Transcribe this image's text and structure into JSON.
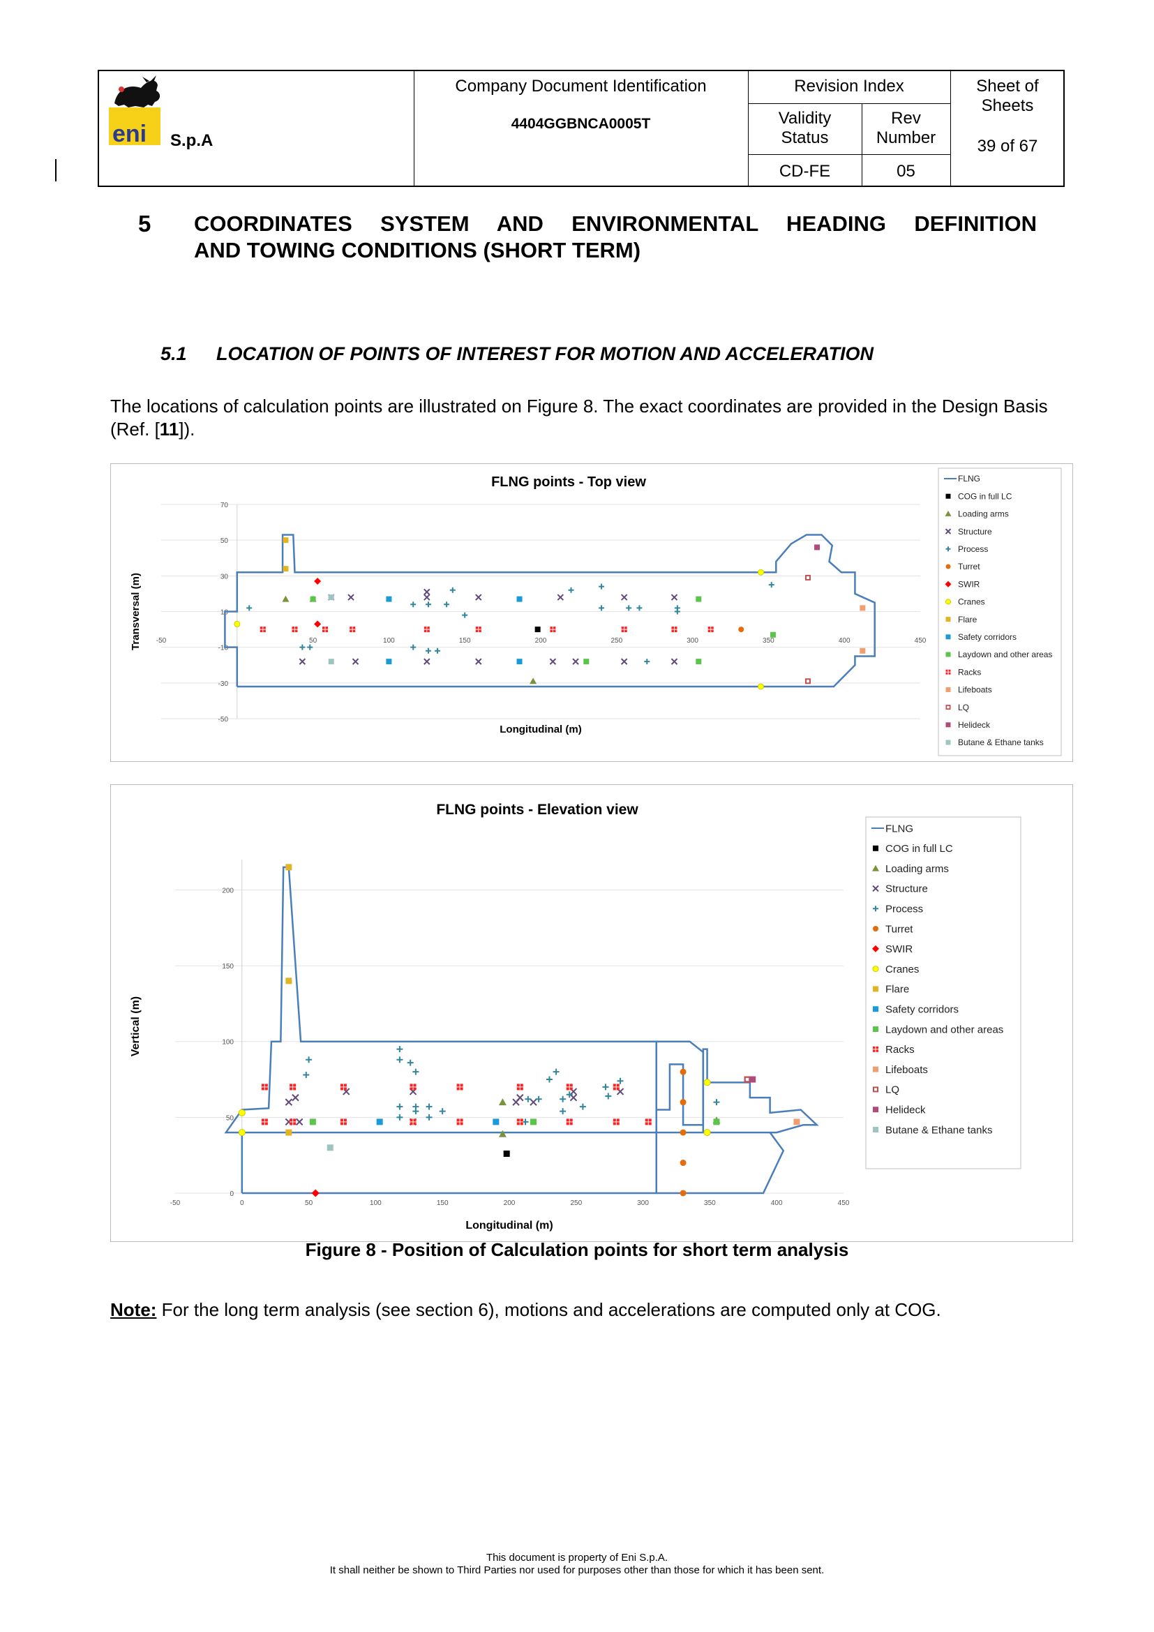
{
  "header": {
    "company": "S.p.A",
    "logo_text": "eni",
    "doc_id_label": "Company Document Identification",
    "doc_id": "4404GGBNCA0005T",
    "revision_index_label": "Revision Index",
    "validity_label_1": "Validity",
    "validity_label_2": "Status",
    "rev_label_1": "Rev",
    "rev_label_2": "Number",
    "validity_value": "CD-FE",
    "rev_value": "05",
    "sheet_label_1": "Sheet  of",
    "sheet_label_2": "Sheets",
    "sheet_value": "39 of 67"
  },
  "section": {
    "number": "5",
    "title_line1": "COORDINATES SYSTEM AND ENVIRONMENTAL HEADING DEFINITION",
    "title_line2": "AND TOWING CONDITIONS (SHORT TERM)"
  },
  "subsection": {
    "number": "5.1",
    "title": "LOCATION OF POINTS OF INTEREST FOR MOTION AND ACCELERATION"
  },
  "paragraph": {
    "part1": "The locations of calculation points are illustrated on Figure 8. The exact coordinates are provided in the Design Basis (Ref. [",
    "ref": "11",
    "part2": "])."
  },
  "legend_colors": {
    "FLNG": "#4a7ebb",
    "COG in full LC": "#000000",
    "Loading arms": "#77933c",
    "Structure": "#604a7b",
    "Process": "#31859c",
    "Turret": "#e46c0a",
    "SWIR": "#ff0000",
    "Cranes": "#ffff00",
    "Flare": "#e2b424",
    "Safety corridors": "#1a9ad6",
    "Laydown and other areas": "#5bc44a",
    "Racks": "#ff2020",
    "Lifeboats": "#f0a070",
    "LQ": "#c0504d",
    "Helideck": "#b04a7b",
    "Butane & Ethane tanks": "#9ec4c0"
  },
  "chart_data": [
    {
      "type": "scatter",
      "title": "FLNG points - Top view",
      "xlabel": "Longitudinal (m)",
      "ylabel": "Transversal (m)",
      "xlim": [
        -50,
        450
      ],
      "ylim": [
        -50,
        70
      ],
      "xticks": [
        -50,
        50,
        100,
        150,
        200,
        250,
        300,
        350,
        400,
        450
      ],
      "yticks": [
        -50,
        -30,
        -10,
        10,
        30,
        50,
        70
      ],
      "legend": [
        "FLNG",
        "COG in full LC",
        "Loading arms",
        "Structure",
        "Process",
        "Turret",
        "SWIR",
        "Cranes",
        "Flare",
        "Safety corridors",
        "Laydown and other areas",
        "Racks",
        "Lifeboats",
        "LQ",
        "Helideck",
        "Butane & Ethane tanks"
      ],
      "outline": [
        [
          0,
          -32
        ],
        [
          0,
          -10
        ],
        [
          -8,
          -10
        ],
        [
          -8,
          10
        ],
        [
          0,
          10
        ],
        [
          0,
          32
        ],
        [
          30,
          32
        ],
        [
          30,
          53
        ],
        [
          37,
          53
        ],
        [
          38,
          32
        ],
        [
          355,
          32
        ],
        [
          355,
          38
        ],
        [
          365,
          48
        ],
        [
          375,
          53
        ],
        [
          385,
          53
        ],
        [
          392,
          47
        ],
        [
          390,
          38
        ],
        [
          398,
          32
        ],
        [
          407,
          32
        ],
        [
          407,
          20
        ],
        [
          420,
          15
        ],
        [
          420,
          -15
        ],
        [
          407,
          -15
        ],
        [
          407,
          -20
        ],
        [
          393,
          -32
        ],
        [
          0,
          -32
        ]
      ],
      "series": [
        {
          "name": "COG in full LC",
          "points": [
            [
              198,
              0
            ]
          ]
        },
        {
          "name": "Loading arms",
          "points": [
            [
              195,
              -29
            ],
            [
              32,
              17
            ],
            [
              50,
              17
            ]
          ]
        },
        {
          "name": "Structure",
          "points": [
            [
              43,
              -18
            ],
            [
              62,
              18
            ],
            [
              78,
              -18
            ],
            [
              75,
              18
            ],
            [
              125,
              -18
            ],
            [
              125,
              18
            ],
            [
              125,
              21
            ],
            [
              159,
              -18
            ],
            [
              159,
              18
            ],
            [
              208,
              -18
            ],
            [
              213,
              18
            ],
            [
              223,
              -18
            ],
            [
              255,
              -18
            ],
            [
              255,
              18
            ],
            [
              288,
              -18
            ],
            [
              288,
              18
            ]
          ]
        },
        {
          "name": "Process",
          "points": [
            [
              8,
              12
            ],
            [
              48,
              -10
            ],
            [
              43,
              -10
            ],
            [
              116,
              -10
            ],
            [
              116,
              14
            ],
            [
              126,
              -12
            ],
            [
              126,
              14
            ],
            [
              132,
              -12
            ],
            [
              138,
              14
            ],
            [
              142,
              22
            ],
            [
              150,
              8
            ],
            [
              220,
              22
            ],
            [
              240,
              12
            ],
            [
              240,
              24
            ],
            [
              258,
              12
            ],
            [
              265,
              12
            ],
            [
              270,
              -18
            ],
            [
              290,
              12
            ],
            [
              290,
              10
            ],
            [
              352,
              25
            ]
          ]
        },
        {
          "name": "Turret",
          "points": [
            [
              332,
              0
            ]
          ]
        },
        {
          "name": "SWIR",
          "points": [
            [
              53,
              27
            ],
            [
              53,
              3
            ]
          ]
        },
        {
          "name": "Cranes",
          "points": [
            [
              0,
              3
            ],
            [
              345,
              -32
            ],
            [
              345,
              32
            ]
          ]
        },
        {
          "name": "Flare",
          "points": [
            [
              32,
              50
            ],
            [
              32,
              34
            ]
          ]
        },
        {
          "name": "Safety corridors",
          "points": [
            [
              100,
              17
            ],
            [
              100,
              -18
            ],
            [
              186,
              17
            ],
            [
              186,
              -18
            ]
          ]
        },
        {
          "name": "Laydown and other areas",
          "points": [
            [
              50,
              17
            ],
            [
              230,
              -18
            ],
            [
              304,
              17
            ],
            [
              304,
              -18
            ],
            [
              353,
              -3
            ]
          ]
        },
        {
          "name": "Racks",
          "points": [
            [
              17,
              0
            ],
            [
              38,
              0
            ],
            [
              58,
              0
            ],
            [
              76,
              0
            ],
            [
              125,
              0
            ],
            [
              159,
              0
            ],
            [
              208,
              0
            ],
            [
              255,
              0
            ],
            [
              288,
              0
            ],
            [
              312,
              0
            ]
          ]
        },
        {
          "name": "Lifeboats",
          "points": [
            [
              412,
              12
            ],
            [
              412,
              -12
            ]
          ]
        },
        {
          "name": "LQ",
          "points": [
            [
              376,
              29
            ],
            [
              376,
              -29
            ]
          ]
        },
        {
          "name": "Helideck",
          "points": [
            [
              382,
              46
            ]
          ]
        },
        {
          "name": "Butane & Ethane tanks",
          "points": [
            [
              62,
              18
            ],
            [
              62,
              -18
            ]
          ]
        }
      ]
    },
    {
      "type": "scatter",
      "title": "FLNG  points - Elevation view",
      "xlabel": "Longitudinal (m)",
      "ylabel": "Vertical (m)",
      "xlim": [
        -50,
        450
      ],
      "ylim": [
        0,
        220
      ],
      "xticks": [
        -50,
        0,
        50,
        100,
        150,
        200,
        250,
        300,
        350,
        400,
        450
      ],
      "yticks": [
        0,
        50,
        100,
        150,
        200
      ],
      "legend": [
        "FLNG",
        "COG in full LC",
        "Loading arms",
        "Structure",
        "Process",
        "Turret",
        "SWIR",
        "Cranes",
        "Flare",
        "Safety corridors",
        "Laydown and other areas",
        "Racks",
        "Lifeboats",
        "LQ",
        "Helideck",
        "Butane & Ethane tanks"
      ],
      "outline": [
        [
          0,
          0
        ],
        [
          0,
          40
        ],
        [
          -12,
          40
        ],
        [
          0,
          55
        ],
        [
          20,
          56
        ],
        [
          22,
          100
        ],
        [
          29,
          100
        ],
        [
          31,
          215
        ],
        [
          35,
          215
        ],
        [
          44,
          100
        ],
        [
          310,
          100
        ],
        [
          310,
          40
        ],
        [
          310,
          0
        ],
        [
          0,
          0
        ]
      ],
      "outline2": [
        [
          0,
          40
        ],
        [
          320,
          40
        ],
        [
          345,
          40
        ],
        [
          355,
          40
        ],
        [
          400,
          40
        ],
        [
          420,
          45
        ],
        [
          430,
          45
        ],
        [
          418,
          55
        ],
        [
          395,
          53
        ],
        [
          395,
          63
        ],
        [
          380,
          63
        ],
        [
          380,
          73
        ],
        [
          348,
          73
        ],
        [
          348,
          95
        ],
        [
          345,
          95
        ],
        [
          345,
          45
        ],
        [
          330,
          45
        ],
        [
          330,
          85
        ],
        [
          320,
          85
        ],
        [
          320,
          55
        ],
        [
          310,
          55
        ]
      ],
      "outline3": [
        [
          310,
          40
        ],
        [
          310,
          100
        ],
        [
          335,
          100
        ],
        [
          345,
          93
        ],
        [
          345,
          40
        ]
      ],
      "outline4": [
        [
          395,
          40
        ],
        [
          405,
          28
        ],
        [
          390,
          0
        ],
        [
          310,
          0
        ]
      ],
      "series": [
        {
          "name": "COG in full LC",
          "points": [
            [
              198,
              26
            ]
          ]
        },
        {
          "name": "Loading arms",
          "points": [
            [
              195,
              39
            ],
            [
              195,
              60
            ],
            [
              355,
              48
            ]
          ]
        },
        {
          "name": "Structure",
          "points": [
            [
              35,
              47
            ],
            [
              35,
              60
            ],
            [
              40,
              63
            ],
            [
              43,
              47
            ],
            [
              78,
              67
            ],
            [
              128,
              67
            ],
            [
              128,
              47
            ],
            [
              205,
              60
            ],
            [
              208,
              63
            ],
            [
              218,
              60
            ],
            [
              248,
              63
            ],
            [
              248,
              67
            ],
            [
              283,
              67
            ]
          ]
        },
        {
          "name": "Process",
          "points": [
            [
              48,
              78
            ],
            [
              50,
              88
            ],
            [
              118,
              88
            ],
            [
              118,
              95
            ],
            [
              126,
              86
            ],
            [
              130,
              80
            ],
            [
              118,
              50
            ],
            [
              118,
              57
            ],
            [
              130,
              54
            ],
            [
              130,
              57
            ],
            [
              140,
              50
            ],
            [
              140,
              57
            ],
            [
              150,
              54
            ],
            [
              212,
              47
            ],
            [
              214,
              62
            ],
            [
              222,
              62
            ],
            [
              230,
              75
            ],
            [
              235,
              80
            ],
            [
              240,
              62
            ],
            [
              245,
              65
            ],
            [
              240,
              54
            ],
            [
              255,
              57
            ],
            [
              272,
              70
            ],
            [
              274,
              64
            ],
            [
              283,
              74
            ],
            [
              355,
              60
            ]
          ]
        },
        {
          "name": "Turret",
          "points": [
            [
              330,
              0
            ],
            [
              330,
              20
            ],
            [
              330,
              40
            ],
            [
              330,
              60
            ],
            [
              330,
              80
            ]
          ]
        },
        {
          "name": "SWIR",
          "points": [
            [
              55,
              0
            ]
          ]
        },
        {
          "name": "Cranes",
          "points": [
            [
              0,
              40
            ],
            [
              0,
              53
            ],
            [
              348,
              40
            ],
            [
              348,
              73
            ]
          ]
        },
        {
          "name": "Flare",
          "points": [
            [
              35,
              215
            ],
            [
              35,
              140
            ],
            [
              35,
              40
            ]
          ]
        },
        {
          "name": "Safety corridors",
          "points": [
            [
              103,
              47
            ],
            [
              190,
              47
            ]
          ]
        },
        {
          "name": "Laydown and other areas",
          "points": [
            [
              53,
              47
            ],
            [
              218,
              47
            ],
            [
              355,
              47
            ]
          ]
        },
        {
          "name": "Racks",
          "points": [
            [
              17,
              47
            ],
            [
              17,
              70
            ],
            [
              38,
              70
            ],
            [
              38,
              47
            ],
            [
              76,
              47
            ],
            [
              76,
              70
            ],
            [
              128,
              47
            ],
            [
              128,
              70
            ],
            [
              163,
              47
            ],
            [
              163,
              70
            ],
            [
              208,
              47
            ],
            [
              208,
              70
            ],
            [
              245,
              47
            ],
            [
              245,
              70
            ],
            [
              280,
              47
            ],
            [
              280,
              70
            ],
            [
              304,
              47
            ]
          ]
        },
        {
          "name": "Lifeboats",
          "points": [
            [
              415,
              47
            ]
          ]
        },
        {
          "name": "LQ",
          "points": [
            [
              378,
              75
            ]
          ]
        },
        {
          "name": "Helideck",
          "points": [
            [
              382,
              75
            ]
          ]
        },
        {
          "name": "Butane & Ethane tanks",
          "points": [
            [
              66,
              30
            ]
          ]
        }
      ]
    }
  ],
  "caption": "Figure 8 - Position of Calculation points for short term analysis",
  "note": {
    "label": "Note:",
    "text": " For the long term analysis (see section 6), motions and accelerations are computed only at COG."
  },
  "footer": {
    "line1": "This document is property of Eni S.p.A.",
    "line2": "It shall neither be shown to Third Parties nor used for purposes other than those for which it has been sent."
  }
}
